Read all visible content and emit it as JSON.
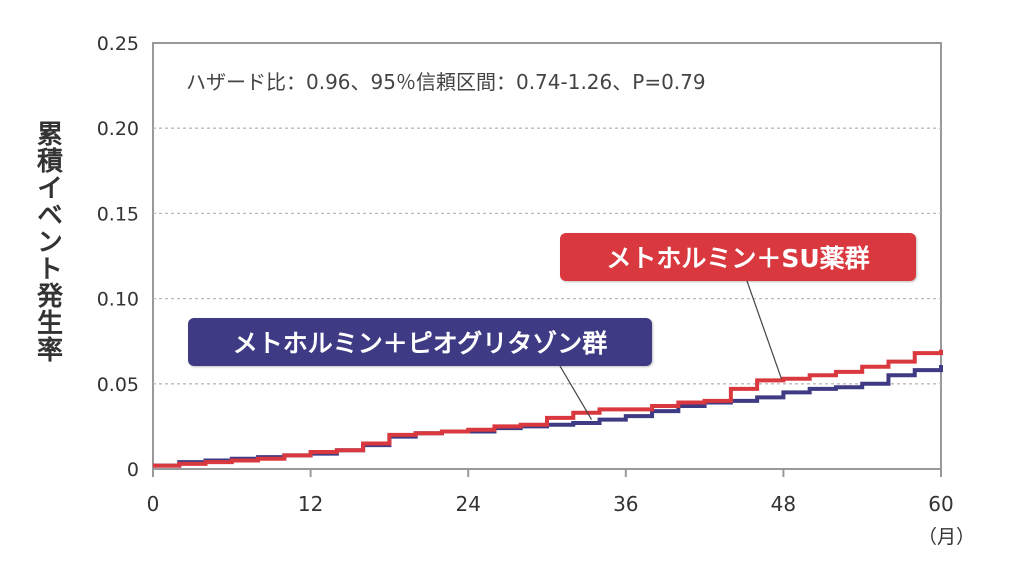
{
  "chart_data": {
    "type": "line",
    "ylabel": "累積イベント発生率",
    "xunit": "（月）",
    "annotation": "ハザード比：0.96、95％信頼区間：0.74-1.26、P=0.79",
    "xlim": [
      0,
      60
    ],
    "ylim": [
      0,
      0.25
    ],
    "x_ticks": [
      0,
      12,
      24,
      36,
      48,
      60
    ],
    "x_tick_labels": [
      "0",
      "12",
      "24",
      "36",
      "48",
      "60"
    ],
    "y_ticks": [
      0,
      0.05,
      0.1,
      0.15,
      0.2,
      0.25
    ],
    "y_tick_labels": [
      "0",
      "0.05",
      "0.10",
      "0.15",
      "0.20",
      "0.25"
    ],
    "grid": "horizontal dashed",
    "series": [
      {
        "name": "メトホルミン＋SU薬群",
        "color": "#d9383f",
        "x": [
          0,
          2,
          4,
          6,
          8,
          10,
          12,
          14,
          16,
          18,
          20,
          22,
          24,
          26,
          28,
          30,
          32,
          34,
          36,
          38,
          40,
          42,
          44,
          46,
          48,
          50,
          52,
          54,
          56,
          58,
          60
        ],
        "y": [
          0.002,
          0.003,
          0.004,
          0.005,
          0.006,
          0.008,
          0.01,
          0.011,
          0.015,
          0.02,
          0.021,
          0.022,
          0.023,
          0.025,
          0.026,
          0.03,
          0.033,
          0.035,
          0.035,
          0.037,
          0.039,
          0.04,
          0.047,
          0.052,
          0.053,
          0.055,
          0.057,
          0.06,
          0.063,
          0.068,
          0.07
        ]
      },
      {
        "name": "メトホルミン＋ピオグリタゾン群",
        "color": "#3f3a84",
        "x": [
          0,
          2,
          4,
          6,
          8,
          10,
          12,
          14,
          16,
          18,
          20,
          22,
          24,
          26,
          28,
          30,
          32,
          34,
          36,
          38,
          40,
          42,
          44,
          46,
          48,
          50,
          52,
          54,
          56,
          58,
          60
        ],
        "y": [
          0.002,
          0.004,
          0.005,
          0.006,
          0.007,
          0.008,
          0.009,
          0.011,
          0.014,
          0.019,
          0.021,
          0.022,
          0.022,
          0.024,
          0.025,
          0.026,
          0.027,
          0.029,
          0.031,
          0.034,
          0.037,
          0.039,
          0.04,
          0.042,
          0.045,
          0.047,
          0.048,
          0.05,
          0.055,
          0.058,
          0.061
        ]
      }
    ],
    "legend": [
      {
        "label": "メトホルミン＋SU薬群",
        "color": "#d9383f"
      },
      {
        "label": "メトホルミン＋ピオグリタゾン群",
        "color": "#3f3a84"
      }
    ]
  }
}
